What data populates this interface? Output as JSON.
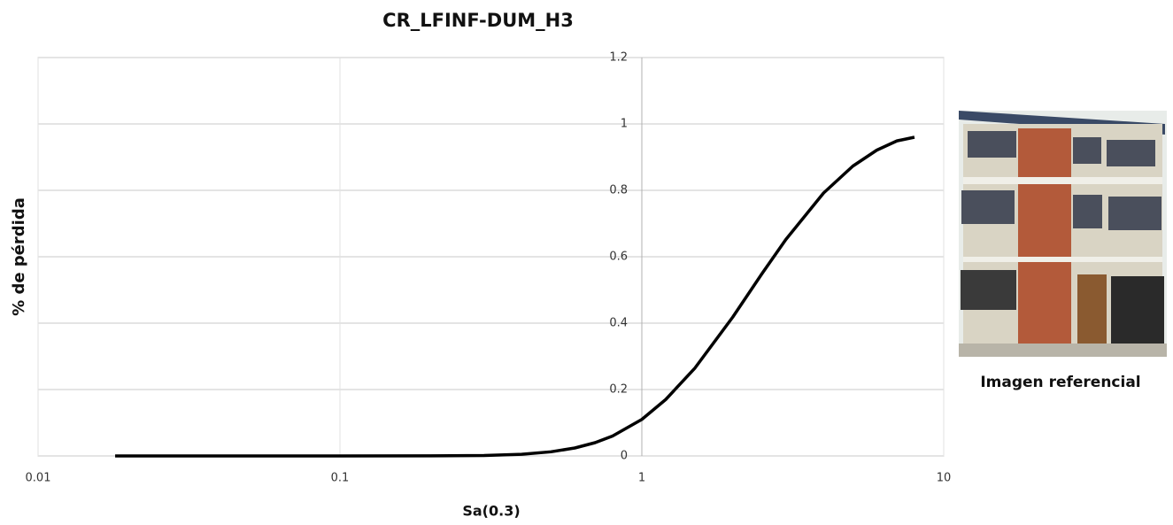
{
  "chart_data": {
    "type": "line",
    "title": "CR_LFINF-DUM_H3",
    "x_label": "Sa(0.3)",
    "y_label": "% de pérdida",
    "xscale": "log",
    "grid": true,
    "xlim": [
      0.01,
      10
    ],
    "xticks": [
      0.01,
      0.1,
      1,
      10
    ],
    "ylim": [
      0,
      1.2
    ],
    "yticks": [
      0,
      0.2,
      0.4,
      0.6,
      0.8,
      1,
      1.2
    ],
    "y_axis_at": 1,
    "series": [
      {
        "color": "#000000",
        "x": [
          0.018,
          0.05,
          0.1,
          0.2,
          0.3,
          0.4,
          0.5,
          0.6,
          0.7,
          0.8,
          1,
          1.2,
          1.5,
          2,
          2.5,
          3,
          4,
          5,
          6,
          7,
          8
        ],
        "values": [
          0,
          0,
          0,
          0.0002,
          0.0013,
          0.005,
          0.0125,
          0.024,
          0.04,
          0.06,
          0.11,
          0.17,
          0.265,
          0.418,
          0.549,
          0.652,
          0.792,
          0.873,
          0.921,
          0.949,
          0.96
        ]
      }
    ]
  },
  "image_caption": "Imagen referencial"
}
